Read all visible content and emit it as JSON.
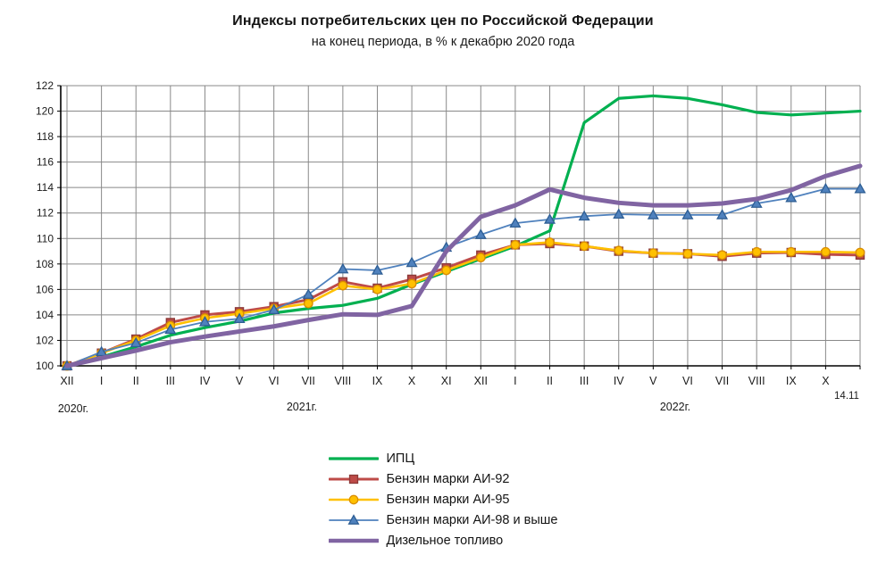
{
  "title": "Индексы потребительских цен по Российской Федерации",
  "subtitle": "на конец периода, в % к декабрю 2020 года",
  "chart_data": {
    "type": "line",
    "x_labels": [
      "XII",
      "I",
      "II",
      "III",
      "IV",
      "V",
      "VI",
      "VII",
      "VIII",
      "IX",
      "X",
      "XI",
      "XII",
      "I",
      "II",
      "III",
      "IV",
      "V",
      "VI",
      "VII",
      "VIII",
      "IX",
      "X",
      "14.11"
    ],
    "year_labels": [
      "2020г.",
      "2021г.",
      "2022г."
    ],
    "y_ticks": [
      100,
      102,
      104,
      106,
      108,
      110,
      112,
      114,
      116,
      118,
      120,
      122
    ],
    "ylim": [
      100,
      122
    ],
    "grid": true,
    "legend_position": "bottom",
    "axis_color": "#000000",
    "grid_color": "#898989",
    "series": [
      {
        "id": "ipc",
        "name": "ИПЦ",
        "color": "#00B050",
        "marker": "none",
        "values": [
          100,
          100.7,
          101.5,
          102.4,
          103.0,
          103.5,
          104.15,
          104.5,
          104.75,
          105.3,
          106.4,
          107.4,
          108.4,
          109.4,
          110.6,
          119.1,
          121.0,
          121.2,
          121.0,
          120.5,
          119.9,
          119.7,
          119.85,
          120.0
        ]
      },
      {
        "id": "ai-92",
        "name": "Бензин марки АИ-92",
        "color": "#BE4B48",
        "marker": "square",
        "marker_border": "#8C3A38",
        "values": [
          100,
          101.0,
          102.1,
          103.4,
          104.0,
          104.25,
          104.65,
          105.2,
          106.6,
          106.1,
          106.8,
          107.7,
          108.7,
          109.5,
          109.6,
          109.4,
          109.0,
          108.85,
          108.8,
          108.6,
          108.85,
          108.9,
          108.75,
          108.7
        ]
      },
      {
        "id": "ai-95",
        "name": "Бензин марки АИ-95",
        "color": "#FFC000",
        "marker": "circle",
        "marker_border": "#DA8E00",
        "values": [
          100,
          101.0,
          102.0,
          103.15,
          103.75,
          104.1,
          104.5,
          104.9,
          106.3,
          106.0,
          106.45,
          107.5,
          108.5,
          109.5,
          109.7,
          109.4,
          109.05,
          108.85,
          108.8,
          108.7,
          108.95,
          108.95,
          108.95,
          108.9
        ]
      },
      {
        "id": "ai-98",
        "name": "Бензин марки АИ-98 и выше",
        "color": "#4F81BD",
        "marker": "triangle",
        "marker_border": "#2E5E94",
        "values": [
          100,
          101.1,
          101.8,
          102.85,
          103.45,
          103.7,
          104.4,
          105.6,
          107.6,
          107.5,
          108.1,
          109.3,
          110.3,
          111.2,
          111.5,
          111.75,
          111.9,
          111.85,
          111.85,
          111.85,
          112.75,
          113.2,
          113.9,
          113.9
        ]
      },
      {
        "id": "diesel",
        "name": "Дизельное топливо",
        "color": "#8064A2",
        "marker": "none",
        "values": [
          100,
          100.6,
          101.2,
          101.85,
          102.3,
          102.7,
          103.1,
          103.6,
          104.05,
          104.0,
          104.7,
          109.0,
          111.7,
          112.6,
          113.85,
          113.2,
          112.8,
          112.6,
          112.6,
          112.75,
          113.1,
          113.8,
          114.9,
          115.7
        ]
      }
    ]
  }
}
